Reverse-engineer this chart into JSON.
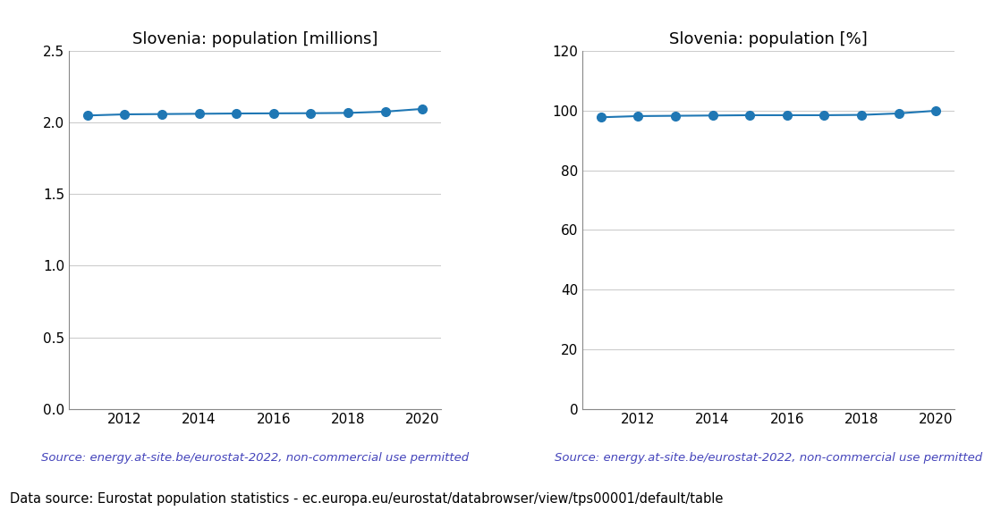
{
  "years": [
    2011,
    2012,
    2013,
    2014,
    2015,
    2016,
    2017,
    2018,
    2019,
    2020
  ],
  "pop_millions": [
    2.05,
    2.058,
    2.06,
    2.062,
    2.064,
    2.065,
    2.066,
    2.068,
    2.077,
    2.096
  ],
  "pop_percent": [
    97.8,
    98.2,
    98.3,
    98.4,
    98.5,
    98.5,
    98.5,
    98.6,
    99.1,
    100.0
  ],
  "title_left": "Slovenia: population [millions]",
  "title_right": "Slovenia: population [%]",
  "source_text": "Source: energy.at-site.be/eurostat-2022, non-commercial use permitted",
  "footer_text": "Data source: Eurostat population statistics - ec.europa.eu/eurostat/databrowser/view/tps00001/default/table",
  "line_color": "#1f77b4",
  "source_color": "#4444bb",
  "ylim_left": [
    0.0,
    2.5
  ],
  "ylim_right": [
    0,
    120
  ],
  "yticks_left": [
    0.0,
    0.5,
    1.0,
    1.5,
    2.0,
    2.5
  ],
  "yticks_right": [
    0,
    20,
    40,
    60,
    80,
    100,
    120
  ],
  "xticks": [
    2011,
    2012,
    2013,
    2014,
    2015,
    2016,
    2017,
    2018,
    2019,
    2020
  ],
  "xtick_labels": [
    "",
    "2012",
    "",
    "2014",
    "",
    "2016",
    "",
    "2018",
    "",
    "2020"
  ],
  "marker_size": 7,
  "line_width": 1.5,
  "title_fontsize": 13,
  "tick_fontsize": 11,
  "source_fontsize": 9.5,
  "footer_fontsize": 10.5
}
